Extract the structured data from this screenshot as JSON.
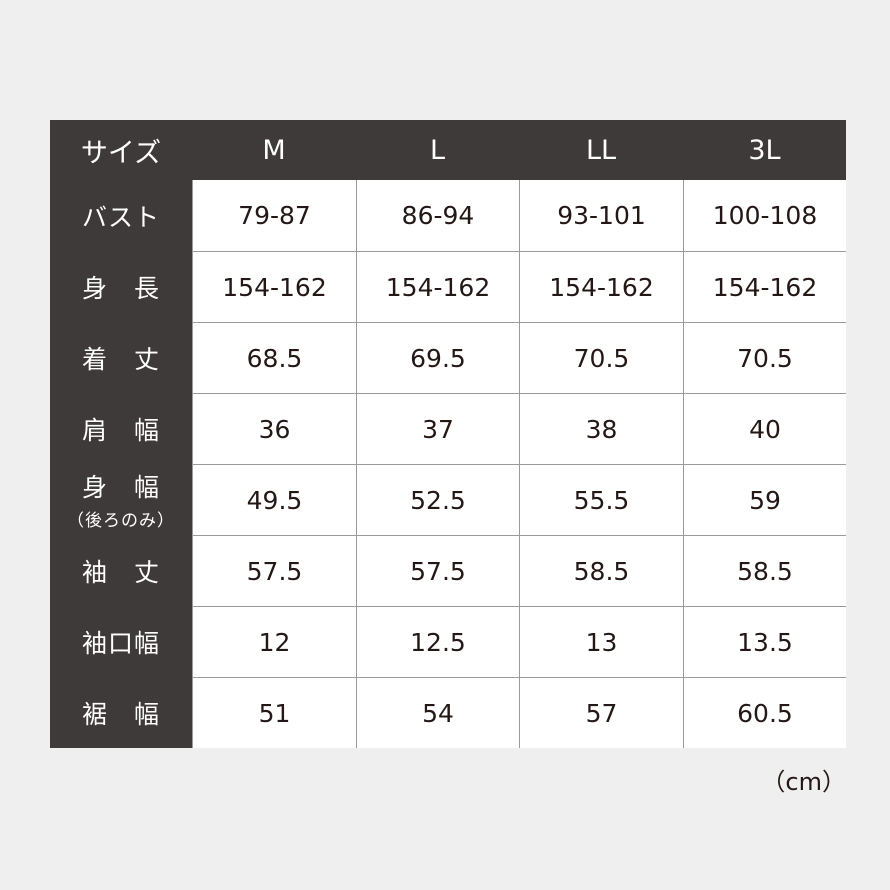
{
  "table": {
    "corner": "サイズ",
    "sizes": [
      "M",
      "L",
      "LL",
      "3L"
    ],
    "rows": [
      {
        "label": "バスト",
        "values": [
          "79-87",
          "86-94",
          "93-101",
          "100-108"
        ]
      },
      {
        "label": "身　長",
        "values": [
          "154-162",
          "154-162",
          "154-162",
          "154-162"
        ]
      },
      {
        "label": "着　丈",
        "values": [
          "68.5",
          "69.5",
          "70.5",
          "70.5"
        ]
      },
      {
        "label": "肩　幅",
        "values": [
          "36",
          "37",
          "38",
          "40"
        ]
      },
      {
        "label": "身　幅",
        "sublabel": "（後ろのみ）",
        "values": [
          "49.5",
          "52.5",
          "55.5",
          "59"
        ]
      },
      {
        "label": "袖　丈",
        "values": [
          "57.5",
          "57.5",
          "58.5",
          "58.5"
        ]
      },
      {
        "label": "袖口幅",
        "values": [
          "12",
          "12.5",
          "13",
          "13.5"
        ]
      },
      {
        "label": "裾　幅",
        "values": [
          "51",
          "54",
          "57",
          "60.5"
        ]
      }
    ]
  },
  "unit": "（cm）",
  "colors": {
    "header_bg": "#3e3a39",
    "cell_bg": "#ffffff",
    "page_bg": "#efefef"
  }
}
